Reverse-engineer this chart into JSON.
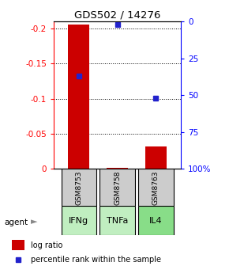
{
  "title": "GDS502 / 14276",
  "samples": [
    "GSM8753",
    "GSM8758",
    "GSM8763"
  ],
  "agents": [
    "IFNg",
    "TNFa",
    "IL4"
  ],
  "log_ratios": [
    -0.205,
    -0.002,
    -0.032
  ],
  "percentile_ranks": [
    37,
    2,
    52
  ],
  "left_ticks": [
    0,
    -0.05,
    -0.1,
    -0.15,
    -0.2
  ],
  "right_ticks": [
    100,
    75,
    50,
    25,
    0
  ],
  "ymin": -0.21,
  "ymax": 0.0,
  "bar_color": "#cc0000",
  "dot_color": "#2222cc",
  "sample_bg": "#cccccc",
  "agent_colors": [
    "#c0eec0",
    "#c0eec0",
    "#88dd88"
  ],
  "legend_bar_label": "log ratio",
  "legend_dot_label": "percentile rank within the sample"
}
